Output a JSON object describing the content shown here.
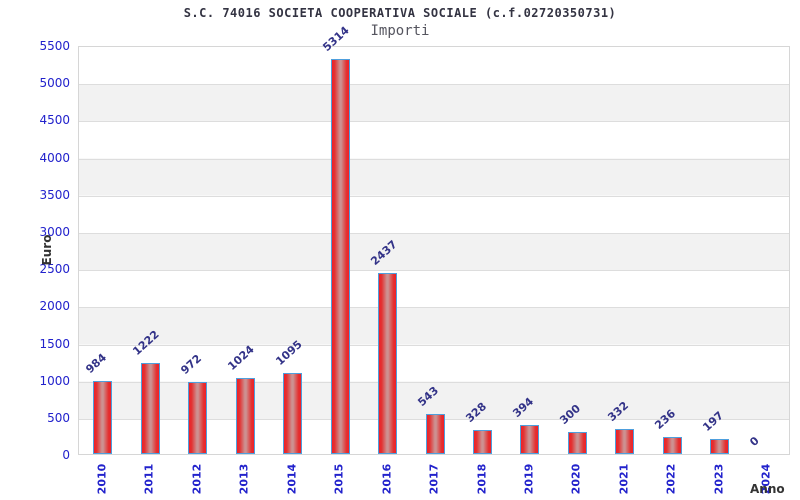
{
  "header": {
    "title": "S.C. 74016 SOCIETA COOPERATIVA SOCIALE (c.f.02720350731)",
    "subtitle": "Importi"
  },
  "chart_data": {
    "type": "bar",
    "title": "S.C. 74016 SOCIETA COOPERATIVA SOCIALE (c.f.02720350731)",
    "subtitle": "Importi",
    "xlabel": "Anno",
    "ylabel": "Euro",
    "categories": [
      "2010",
      "2011",
      "2012",
      "2013",
      "2014",
      "2015",
      "2016",
      "2017",
      "2018",
      "2019",
      "2020",
      "2021",
      "2022",
      "2023",
      "2024"
    ],
    "values": [
      984,
      1222,
      972,
      1024,
      1095,
      5314,
      2437,
      543,
      328,
      394,
      300,
      332,
      236,
      197,
      0
    ],
    "ylim": [
      0,
      5500
    ],
    "ytick_step": 500,
    "yticks": [
      0,
      500,
      1000,
      1500,
      2000,
      2500,
      3000,
      3500,
      4000,
      4500,
      5000,
      5500
    ],
    "grid": "horizontal-bands",
    "legend": "none",
    "colors": {
      "bar_edge": "#4e9fdd",
      "bar_fill_outer": "#f01f28",
      "bar_fill_center": "#cd9191",
      "tick_label": "#2222cc",
      "value_label": "#333388",
      "band_gray": "#f2f2f2",
      "gridline": "#dddddd",
      "axis_title": "#333333",
      "title_color": "#333342",
      "subtitle_color": "#55555f"
    }
  }
}
